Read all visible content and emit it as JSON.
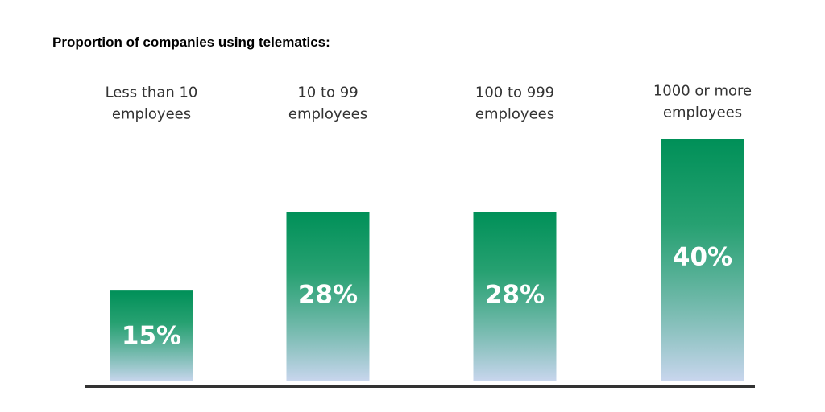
{
  "chart_data": {
    "type": "bar",
    "title": "Proportion of companies using telematics:",
    "categories": [
      [
        "Less than 10",
        "employees"
      ],
      [
        "10 to 99",
        "employees"
      ],
      [
        "100 to 999",
        "employees"
      ],
      [
        "1000 or more",
        "employees"
      ]
    ],
    "values": [
      15,
      28,
      28,
      40
    ],
    "value_labels": [
      "15%",
      "28%",
      "28%",
      "40%"
    ],
    "unit": "%",
    "ylim": [
      0,
      40
    ],
    "grid": false,
    "legend": "none",
    "colors": {
      "bar_top": "#009058",
      "bar_bottom": "#c9d6ee",
      "baseline": "#333333",
      "label_text": "#333333",
      "value_text": "#ffffff"
    }
  }
}
